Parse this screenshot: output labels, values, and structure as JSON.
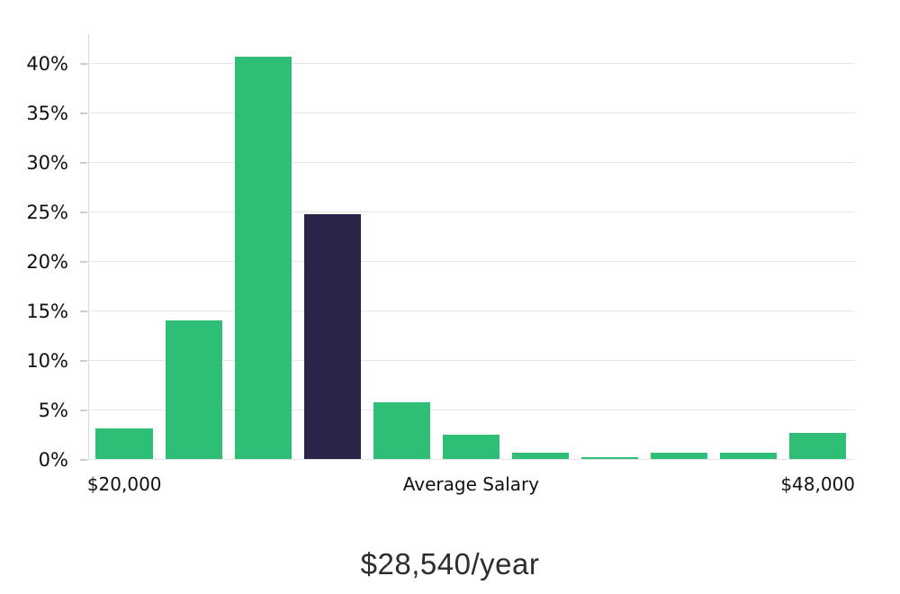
{
  "title": "$28,540/year",
  "colors": {
    "bar_green": "#2ebe76",
    "bar_highlight_navy": "#2a2449",
    "gridline": "#e6e6e6",
    "axis_line": "#d9d9d9",
    "tick": "#cccccc",
    "label_text": "#111111",
    "title_text": "#2d2d2d"
  },
  "chart_data": {
    "type": "bar",
    "title": "$28,540/year",
    "values": [
      3.1,
      14.0,
      40.6,
      24.7,
      5.7,
      2.5,
      0.6,
      0.15,
      0.6,
      0.6,
      2.6
    ],
    "highlight_index": 3,
    "y_ticks": [
      0,
      5,
      10,
      15,
      20,
      25,
      30,
      35,
      40
    ],
    "y_tick_suffix": "%",
    "ylim": [
      0,
      43
    ],
    "grid": true,
    "legend": "none",
    "x_axis_labels": [
      {
        "text": "$20,000",
        "bar_index": 0
      },
      {
        "text": "Average Salary",
        "bar_index": 5
      },
      {
        "text": "$48,000",
        "bar_index": 10
      }
    ]
  }
}
